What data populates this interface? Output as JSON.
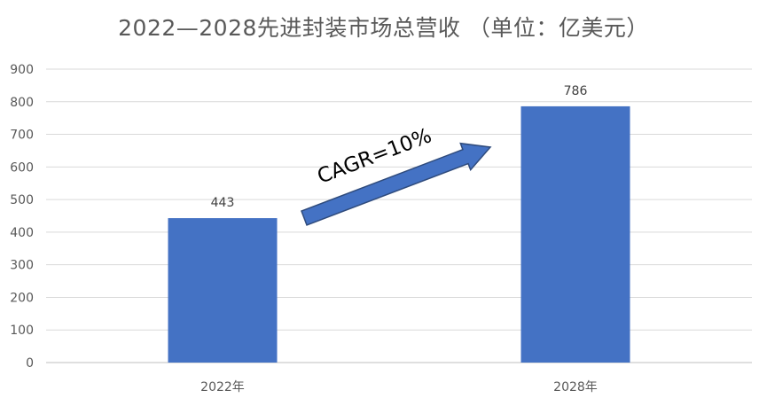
{
  "chart_data": {
    "type": "bar",
    "title": "2022—2028先进封装市场总营收 （单位：亿美元）",
    "categories": [
      "2022年",
      "2028年"
    ],
    "values": [
      443,
      786
    ],
    "data_labels": [
      "443",
      "786"
    ],
    "ylim": [
      0,
      900
    ],
    "yticks": [
      0,
      100,
      200,
      300,
      400,
      500,
      600,
      700,
      800,
      900
    ],
    "grid": true,
    "annotation": "CAGR=10%",
    "colors": {
      "bar": "#4472C4",
      "arrow_fill": "#4472C4",
      "arrow_stroke": "#2F4B7C",
      "grid": "#D9D9D9",
      "text": "#595959"
    }
  }
}
